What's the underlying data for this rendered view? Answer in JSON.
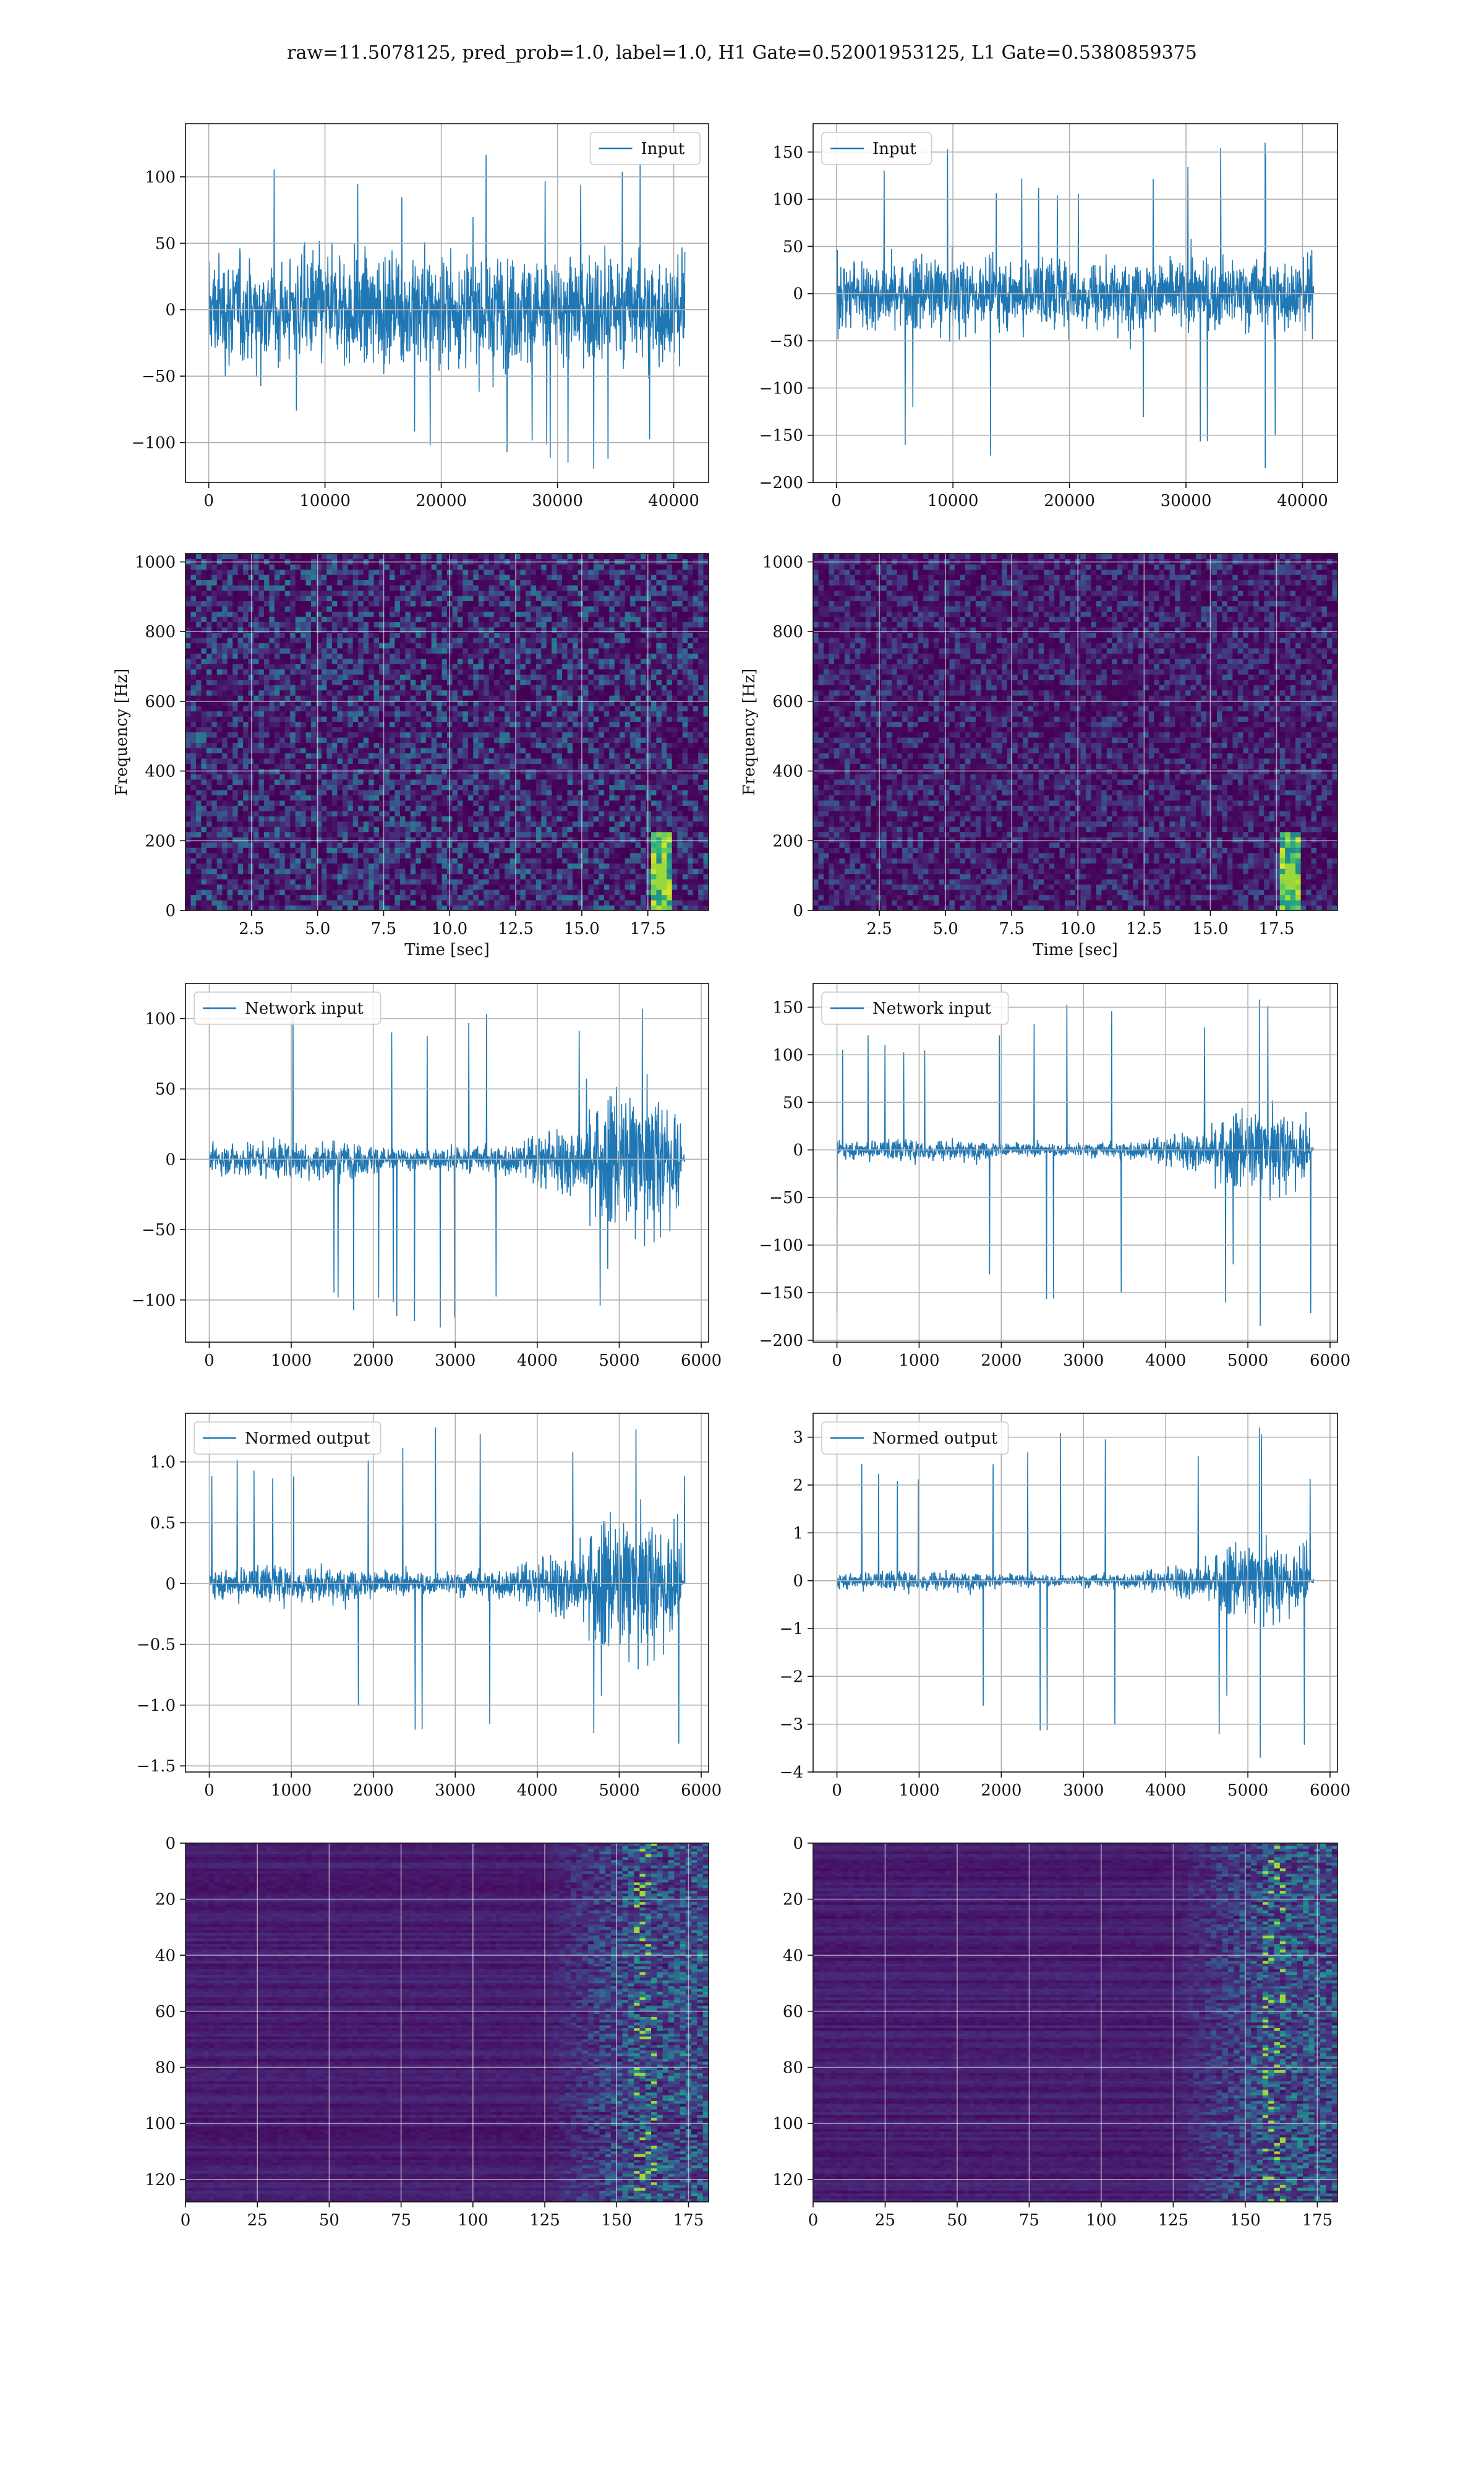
{
  "figure": {
    "title": "raw=11.5078125, pred_prob=1.0, label=1.0, H1 Gate=0.52001953125, L1 Gate=0.5380859375",
    "line_color": "#1f77b4"
  },
  "chart_data": [
    {
      "id": "h1-input",
      "type": "line",
      "series": [
        {
          "name": "Input"
        }
      ],
      "legend": "upper right",
      "xlim": [
        -2000,
        43000
      ],
      "ylim": [
        -130,
        140
      ],
      "xticks": [
        0,
        10000,
        20000,
        30000,
        40000
      ],
      "yticks": [
        -100,
        -50,
        0,
        50,
        100
      ],
      "signal": {
        "x_end": 40960,
        "sigma": 28,
        "max": 120,
        "min": -120,
        "profile": "stationary"
      }
    },
    {
      "id": "l1-input",
      "type": "line",
      "series": [
        {
          "name": "Input"
        }
      ],
      "legend": "upper left",
      "xlim": [
        -2000,
        43000
      ],
      "ylim": [
        -200,
        180
      ],
      "xticks": [
        0,
        10000,
        20000,
        30000,
        40000
      ],
      "yticks": [
        -200,
        -150,
        -100,
        -50,
        0,
        50,
        100,
        150
      ],
      "signal": {
        "x_end": 40960,
        "sigma": 26,
        "max": 160,
        "min": -185,
        "profile": "stationary",
        "spike_x": 36800
      }
    },
    {
      "id": "h1-spectrogram",
      "type": "heatmap",
      "colormap": "viridis",
      "xlabel": "Time [sec]",
      "ylabel": "Frequency [Hz]",
      "xlim": [
        0,
        19.8
      ],
      "ylim": [
        0,
        1024
      ],
      "xticks": [
        2.5,
        5.0,
        7.5,
        10.0,
        12.5,
        15.0,
        17.5
      ],
      "yticks": [
        0,
        200,
        400,
        600,
        800,
        1000
      ],
      "signal_time": 18.0
    },
    {
      "id": "l1-spectrogram",
      "type": "heatmap",
      "colormap": "viridis",
      "xlabel": "Time [sec]",
      "ylabel": "Frequency [Hz]",
      "xlim": [
        0,
        19.8
      ],
      "ylim": [
        0,
        1024
      ],
      "xticks": [
        2.5,
        5.0,
        7.5,
        10.0,
        12.5,
        15.0,
        17.5
      ],
      "yticks": [
        0,
        200,
        400,
        600,
        800,
        1000
      ],
      "signal_time": 18.0
    },
    {
      "id": "h1-network-input",
      "type": "line",
      "series": [
        {
          "name": "Network input"
        }
      ],
      "legend": "upper left",
      "xlim": [
        -290,
        6090
      ],
      "ylim": [
        -130,
        125
      ],
      "xticks": [
        0,
        1000,
        2000,
        3000,
        4000,
        5000,
        6000
      ],
      "yticks": [
        -100,
        -50,
        0,
        50,
        100
      ],
      "signal": {
        "x_end": 5800,
        "sigma": 7,
        "max": 112,
        "min": -120,
        "profile": "chirp",
        "burst_start": 4600,
        "burst_end": 5730
      }
    },
    {
      "id": "l1-network-input",
      "type": "line",
      "series": [
        {
          "name": "Network input"
        }
      ],
      "legend": "upper left",
      "xlim": [
        -290,
        6090
      ],
      "ylim": [
        -202,
        175
      ],
      "xticks": [
        0,
        1000,
        2000,
        3000,
        4000,
        5000,
        6000
      ],
      "yticks": [
        -200,
        -150,
        -100,
        -50,
        0,
        50,
        100,
        150
      ],
      "signal": {
        "x_end": 5800,
        "sigma": 6,
        "max": 158,
        "min": -185,
        "profile": "chirp",
        "burst_start": 4600,
        "burst_end": 5730,
        "spike_x": 5150
      }
    },
    {
      "id": "h1-normed-output",
      "type": "line",
      "series": [
        {
          "name": "Normed output"
        }
      ],
      "legend": "upper left",
      "xlim": [
        -290,
        6090
      ],
      "ylim": [
        -1.55,
        1.4
      ],
      "xticks": [
        0,
        1000,
        2000,
        3000,
        4000,
        5000,
        6000
      ],
      "yticks": [
        -1.5,
        -1.0,
        -0.5,
        0.0,
        0.5,
        1.0
      ],
      "signal": {
        "x_end": 5800,
        "sigma": 0.08,
        "max": 1.33,
        "min": -1.42,
        "profile": "chirp",
        "burst_start": 4600,
        "burst_end": 5730
      }
    },
    {
      "id": "l1-normed-output",
      "type": "line",
      "series": [
        {
          "name": "Normed output"
        }
      ],
      "legend": "upper left",
      "xlim": [
        -290,
        6090
      ],
      "ylim": [
        -4.0,
        3.5
      ],
      "xticks": [
        0,
        1000,
        2000,
        3000,
        4000,
        5000,
        6000
      ],
      "yticks": [
        -4,
        -3,
        -2,
        -1,
        0,
        1,
        2,
        3
      ],
      "signal": {
        "x_end": 5800,
        "sigma": 0.11,
        "max": 3.2,
        "min": -3.7,
        "profile": "chirp",
        "burst_start": 4600,
        "burst_end": 5730,
        "spike_x": 5150
      }
    },
    {
      "id": "h1-feature-map",
      "type": "heatmap",
      "colormap": "viridis",
      "xlim": [
        0,
        182
      ],
      "ylim": [
        128,
        0
      ],
      "xticks": [
        0,
        25,
        50,
        75,
        100,
        125,
        150,
        175
      ],
      "yticks": [
        0,
        20,
        40,
        60,
        80,
        100,
        120
      ],
      "active_from": 125
    },
    {
      "id": "l1-feature-map",
      "type": "heatmap",
      "colormap": "viridis",
      "xlim": [
        0,
        182
      ],
      "ylim": [
        128,
        0
      ],
      "xticks": [
        0,
        25,
        50,
        75,
        100,
        125,
        150,
        175
      ],
      "yticks": [
        0,
        20,
        40,
        60,
        80,
        100,
        120
      ],
      "active_from": 125
    }
  ]
}
